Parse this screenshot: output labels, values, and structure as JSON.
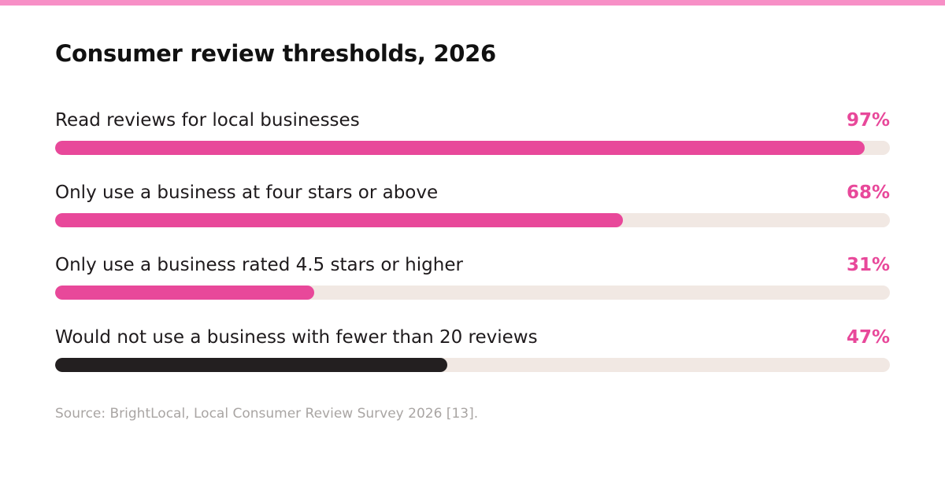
{
  "title": "Consumer review thresholds, 2026",
  "source": "Source: BrightLocal, Local Consumer Review Survey 2026 [13].",
  "colors": {
    "top_strip": "#f78fc6",
    "accent": "#e8489a",
    "dark_bar": "#231f20",
    "track": "#f1e8e3"
  },
  "chart_data": {
    "type": "bar",
    "orientation": "horizontal",
    "title": "Consumer review thresholds, 2026",
    "xlim": [
      0,
      100
    ],
    "grid": false,
    "categories": [
      "Read reviews for local businesses",
      "Only use a business at four stars or above",
      "Only use a business rated 4.5 stars or higher",
      "Would not use a business with fewer than 20 reviews"
    ],
    "values": [
      97,
      68,
      31,
      47
    ],
    "value_labels": [
      "97%",
      "68%",
      "31%",
      "47%"
    ],
    "bar_colors": [
      "#e8489a",
      "#e8489a",
      "#e8489a",
      "#231f20"
    ],
    "label_colors": [
      "#e8489a",
      "#e8489a",
      "#e8489a",
      "#e8489a"
    ]
  }
}
